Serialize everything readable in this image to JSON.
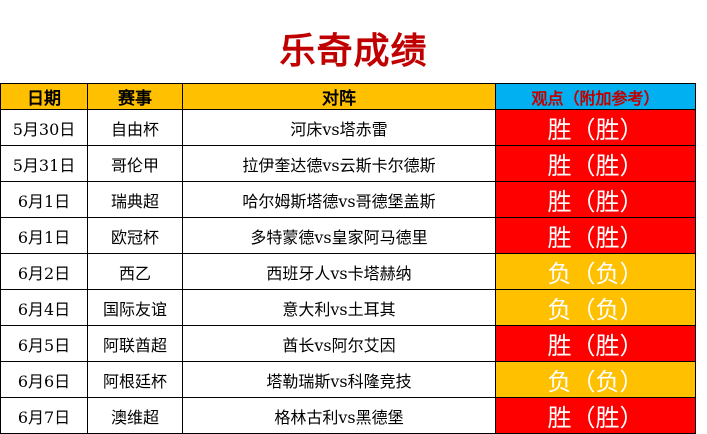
{
  "title": "乐奇成绩",
  "headers": {
    "date": "日期",
    "event": "赛事",
    "match": "对阵",
    "view": "观点（附加参考）"
  },
  "colors": {
    "title": "#c00000",
    "header_bg": "#ffc000",
    "view_header_bg": "#00b0f0",
    "win_bg": "#ff0000",
    "lose_bg": "#ffc000"
  },
  "rows": [
    {
      "date": "5月30日",
      "event": "自由杯",
      "match": "河床vs塔赤雷",
      "result": "胜（胜）",
      "status": "win"
    },
    {
      "date": "5月31日",
      "event": "哥伦甲",
      "match": "拉伊奎达德vs云斯卡尔德斯",
      "result": "胜（胜）",
      "status": "win"
    },
    {
      "date": "6月1日",
      "event": "瑞典超",
      "match": "哈尔姆斯塔德vs哥德堡盖斯",
      "result": "胜（胜）",
      "status": "win"
    },
    {
      "date": "6月1日",
      "event": "欧冠杯",
      "match": "多特蒙德vs皇家阿马德里",
      "result": "胜（胜）",
      "status": "win"
    },
    {
      "date": "6月2日",
      "event": "西乙",
      "match": "西班牙人vs卡塔赫纳",
      "result": "负（负）",
      "status": "lose"
    },
    {
      "date": "6月4日",
      "event": "国际友谊",
      "match": "意大利vs土耳其",
      "result": "负（负）",
      "status": "lose"
    },
    {
      "date": "6月5日",
      "event": "阿联酋超",
      "match": "酋长vs阿尔艾因",
      "result": "胜（胜）",
      "status": "win"
    },
    {
      "date": "6月6日",
      "event": "阿根廷杯",
      "match": "塔勒瑞斯vs科隆竞技",
      "result": "负（负）",
      "status": "lose"
    },
    {
      "date": "6月7日",
      "event": "澳维超",
      "match": "格林古利vs黑德堡",
      "result": "胜（胜）",
      "status": "win"
    }
  ]
}
